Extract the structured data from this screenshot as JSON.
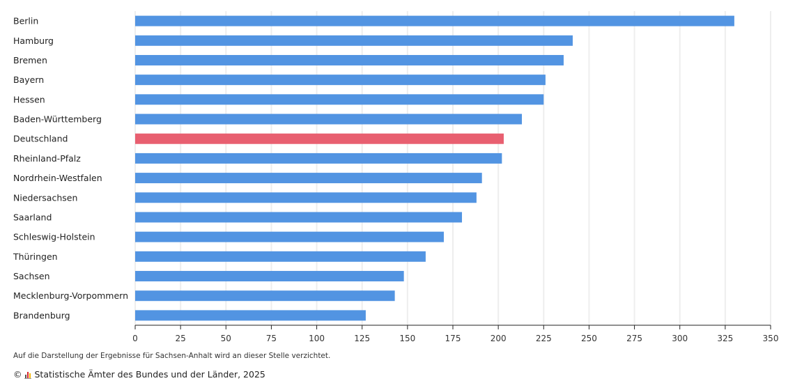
{
  "chart_data": {
    "type": "bar",
    "orientation": "horizontal",
    "categories": [
      "Berlin",
      "Hamburg",
      "Bremen",
      "Bayern",
      "Hessen",
      "Baden-Württemberg",
      "Deutschland",
      "Rheinland-Pfalz",
      "Nordrhein-Westfalen",
      "Niedersachsen",
      "Saarland",
      "Schleswig-Holstein",
      "Thüringen",
      "Sachsen",
      "Mecklenburg-Vorpommern",
      "Brandenburg"
    ],
    "values": [
      330,
      241,
      236,
      226,
      225,
      213,
      203,
      202,
      191,
      188,
      180,
      170,
      160,
      148,
      143,
      127
    ],
    "highlight": "Deutschland",
    "xlim": [
      0,
      350
    ],
    "xticks": [
      0,
      25,
      50,
      75,
      100,
      125,
      150,
      175,
      200,
      225,
      250,
      275,
      300,
      325,
      350
    ],
    "grid": true,
    "title": "",
    "xlabel": "",
    "ylabel": "",
    "colors": {
      "bar": "#5294e2",
      "highlight": "#e85f70",
      "grid": "#eeeeee",
      "axis": "#222222"
    }
  },
  "footer": {
    "note": "Auf die Darstellung der Ergebnisse für Sachsen-Anhalt wird an dieser Stelle verzichtet.",
    "copyright_symbol": "©",
    "source": "Statistische Ämter des Bundes und der Länder, 2025",
    "logo_icon": "destatis-logo-icon"
  }
}
